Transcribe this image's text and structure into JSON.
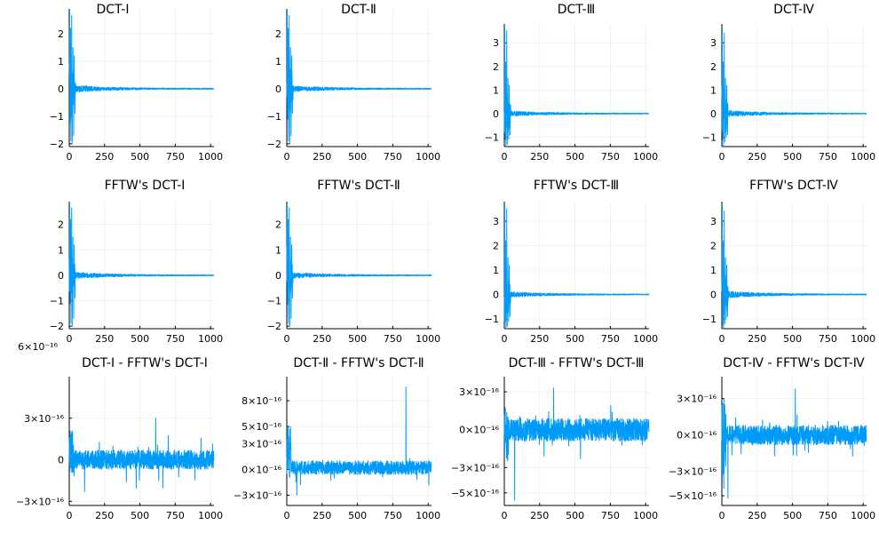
{
  "figure": {
    "series_color": "#009AF9",
    "background": "#FFFFFF"
  },
  "chart_data": [
    {
      "type": "line",
      "title": "DCT-I",
      "x_range": [
        0,
        1024
      ],
      "ylim": [
        -2.1,
        2.9
      ],
      "xticks": [
        0,
        250,
        500,
        750,
        1000
      ],
      "yticks": [
        {
          "v": -2,
          "label": "−2"
        },
        {
          "v": -1,
          "label": "−1"
        },
        {
          "v": 0,
          "label": "0"
        },
        {
          "v": 1,
          "label": "1"
        },
        {
          "v": 2,
          "label": "2"
        }
      ],
      "series": [
        {
          "name": "DCT-I",
          "profile": "coeff",
          "peak": [
            2.8,
            -2.0
          ],
          "noise": 0.08
        }
      ]
    },
    {
      "type": "line",
      "title": "DCT-Ⅱ",
      "x_range": [
        0,
        1024
      ],
      "ylim": [
        -2.1,
        2.9
      ],
      "xticks": [
        0,
        250,
        500,
        750,
        1000
      ],
      "yticks": [
        {
          "v": -2,
          "label": "−2"
        },
        {
          "v": -1,
          "label": "−1"
        },
        {
          "v": 0,
          "label": "0"
        },
        {
          "v": 1,
          "label": "1"
        },
        {
          "v": 2,
          "label": "2"
        }
      ],
      "series": [
        {
          "name": "DCT-Ⅱ",
          "profile": "coeff",
          "peak": [
            2.8,
            -2.0
          ],
          "noise": 0.07
        }
      ]
    },
    {
      "type": "line",
      "title": "DCT-Ⅲ",
      "x_range": [
        0,
        1024
      ],
      "ylim": [
        -1.4,
        3.8
      ],
      "xticks": [
        0,
        250,
        500,
        750,
        1000
      ],
      "yticks": [
        {
          "v": -1,
          "label": "−1"
        },
        {
          "v": 0,
          "label": "0"
        },
        {
          "v": 1,
          "label": "1"
        },
        {
          "v": 2,
          "label": "2"
        },
        {
          "v": 3,
          "label": "3"
        }
      ],
      "series": [
        {
          "name": "DCT-Ⅲ",
          "profile": "coeff",
          "peak": [
            3.7,
            -1.3
          ],
          "noise": 0.07
        }
      ]
    },
    {
      "type": "line",
      "title": "DCT-Ⅳ",
      "x_range": [
        0,
        1024
      ],
      "ylim": [
        -1.4,
        3.8
      ],
      "xticks": [
        0,
        250,
        500,
        750,
        1000
      ],
      "yticks": [
        {
          "v": -1,
          "label": "−1"
        },
        {
          "v": 0,
          "label": "0"
        },
        {
          "v": 1,
          "label": "1"
        },
        {
          "v": 2,
          "label": "2"
        },
        {
          "v": 3,
          "label": "3"
        }
      ],
      "series": [
        {
          "name": "DCT-Ⅳ",
          "profile": "coeff",
          "peak": [
            3.6,
            -1.2
          ],
          "noise": 0.09
        }
      ]
    },
    {
      "type": "line",
      "title": "FFTW's DCT-I",
      "x_range": [
        0,
        1024
      ],
      "ylim": [
        -2.1,
        2.9
      ],
      "xticks": [
        0,
        250,
        500,
        750,
        1000
      ],
      "yticks": [
        {
          "v": -2,
          "label": "−2"
        },
        {
          "v": -1,
          "label": "−1"
        },
        {
          "v": 0,
          "label": "0"
        },
        {
          "v": 1,
          "label": "1"
        },
        {
          "v": 2,
          "label": "2"
        }
      ],
      "series": [
        {
          "name": "FFTW's DCT-I",
          "profile": "coeff",
          "peak": [
            2.8,
            -2.0
          ],
          "noise": 0.08
        }
      ]
    },
    {
      "type": "line",
      "title": "FFTW's DCT-Ⅱ",
      "x_range": [
        0,
        1024
      ],
      "ylim": [
        -2.1,
        2.9
      ],
      "xticks": [
        0,
        250,
        500,
        750,
        1000
      ],
      "yticks": [
        {
          "v": -2,
          "label": "−2"
        },
        {
          "v": -1,
          "label": "−1"
        },
        {
          "v": 0,
          "label": "0"
        },
        {
          "v": 1,
          "label": "1"
        },
        {
          "v": 2,
          "label": "2"
        }
      ],
      "series": [
        {
          "name": "FFTW's DCT-Ⅱ",
          "profile": "coeff",
          "peak": [
            2.8,
            -2.0
          ],
          "noise": 0.07
        }
      ]
    },
    {
      "type": "line",
      "title": "FFTW's DCT-Ⅲ",
      "x_range": [
        0,
        1024
      ],
      "ylim": [
        -1.4,
        3.8
      ],
      "xticks": [
        0,
        250,
        500,
        750,
        1000
      ],
      "yticks": [
        {
          "v": -1,
          "label": "−1"
        },
        {
          "v": 0,
          "label": "0"
        },
        {
          "v": 1,
          "label": "1"
        },
        {
          "v": 2,
          "label": "2"
        },
        {
          "v": 3,
          "label": "3"
        }
      ],
      "series": [
        {
          "name": "FFTW's DCT-Ⅲ",
          "profile": "coeff",
          "peak": [
            3.7,
            -1.3
          ],
          "noise": 0.07
        }
      ]
    },
    {
      "type": "line",
      "title": "FFTW's DCT-Ⅳ",
      "x_range": [
        0,
        1024
      ],
      "ylim": [
        -1.4,
        3.8
      ],
      "xticks": [
        0,
        250,
        500,
        750,
        1000
      ],
      "yticks": [
        {
          "v": -1,
          "label": "−1"
        },
        {
          "v": 0,
          "label": "0"
        },
        {
          "v": 1,
          "label": "1"
        },
        {
          "v": 2,
          "label": "2"
        },
        {
          "v": 3,
          "label": "3"
        }
      ],
      "series": [
        {
          "name": "FFTW's DCT-Ⅳ",
          "profile": "coeff",
          "peak": [
            3.6,
            -1.2
          ],
          "noise": 0.09
        }
      ]
    },
    {
      "type": "line",
      "title": "DCT-I - FFTW's DCT-I",
      "x_range": [
        0,
        1024
      ],
      "ylim": [
        -3.3,
        6.0
      ],
      "ylim_scale": "×10⁻¹⁶",
      "corner_label": "6×10⁻¹⁶",
      "xticks": [
        0,
        250,
        500,
        750,
        1000
      ],
      "yticks": [
        {
          "v": -3,
          "label": "−3×10⁻¹⁶"
        },
        {
          "v": 0,
          "label": "0"
        },
        {
          "v": 3,
          "label": "3×10⁻¹⁶"
        }
      ],
      "series": [
        {
          "name": "DCT-I - FFTW's DCT-I",
          "profile": "diff",
          "baseline": 0.0,
          "noise": 0.7,
          "spike_up": 3.0,
          "spike_down": -2.3,
          "start_range": [
            -1.0,
            2.2
          ]
        }
      ]
    },
    {
      "type": "line",
      "title": "DCT-Ⅱ - FFTW's DCT-Ⅱ",
      "x_range": [
        0,
        1024
      ],
      "ylim": [
        -4.2,
        10.8
      ],
      "ylim_scale": "×10⁻¹⁶",
      "xticks": [
        0,
        250,
        500,
        750,
        1000
      ],
      "yticks": [
        {
          "v": -3,
          "label": "−3×10⁻¹⁶"
        },
        {
          "v": 0,
          "label": "0×10⁻¹⁶"
        },
        {
          "v": 3,
          "label": "3×10⁻¹⁶"
        },
        {
          "v": 5,
          "label": "5×10⁻¹⁶"
        },
        {
          "v": 8,
          "label": "8×10⁻¹⁶"
        }
      ],
      "series": [
        {
          "name": "DCT-Ⅱ - FFTW's DCT-Ⅱ",
          "profile": "diff",
          "baseline": 0.2,
          "noise": 0.8,
          "spike_up": 9.6,
          "spike_down": -3.0,
          "start_range": [
            -1.0,
            6.0
          ]
        }
      ]
    },
    {
      "type": "line",
      "title": "DCT-Ⅲ - FFTW's DCT-Ⅲ",
      "x_range": [
        0,
        1024
      ],
      "ylim": [
        -6.0,
        4.2
      ],
      "ylim_scale": "×10⁻¹⁶",
      "xticks": [
        0,
        250,
        500,
        750,
        1000
      ],
      "yticks": [
        {
          "v": -5,
          "label": "−5×10⁻¹⁶"
        },
        {
          "v": -3,
          "label": "−3×10⁻¹⁶"
        },
        {
          "v": 0,
          "label": "0×10⁻¹⁶"
        },
        {
          "v": 3,
          "label": "3×10⁻¹⁶"
        }
      ],
      "series": [
        {
          "name": "DCT-Ⅲ - FFTW's DCT-Ⅲ",
          "profile": "diff",
          "baseline": 0.0,
          "noise": 0.9,
          "spike_up": 3.3,
          "spike_down": -5.6,
          "start_range": [
            -2.5,
            1.8
          ]
        }
      ]
    },
    {
      "type": "line",
      "title": "DCT-Ⅳ - FFTW's DCT-Ⅳ",
      "x_range": [
        0,
        1024
      ],
      "ylim": [
        -5.8,
        4.8
      ],
      "ylim_scale": "×10⁻¹⁶",
      "xticks": [
        0,
        250,
        500,
        750,
        1000
      ],
      "yticks": [
        {
          "v": -5,
          "label": "−5×10⁻¹⁶"
        },
        {
          "v": -3,
          "label": "−3×10⁻¹⁶"
        },
        {
          "v": 0,
          "label": "0×10⁻¹⁶"
        },
        {
          "v": 3,
          "label": "3×10⁻¹⁶"
        }
      ],
      "series": [
        {
          "name": "DCT-Ⅳ - FFTW's DCT-Ⅳ",
          "profile": "diff",
          "baseline": 0.0,
          "noise": 0.8,
          "spike_up": 3.8,
          "spike_down": -5.2,
          "start_range": [
            -5.2,
            3.0
          ]
        }
      ]
    }
  ]
}
